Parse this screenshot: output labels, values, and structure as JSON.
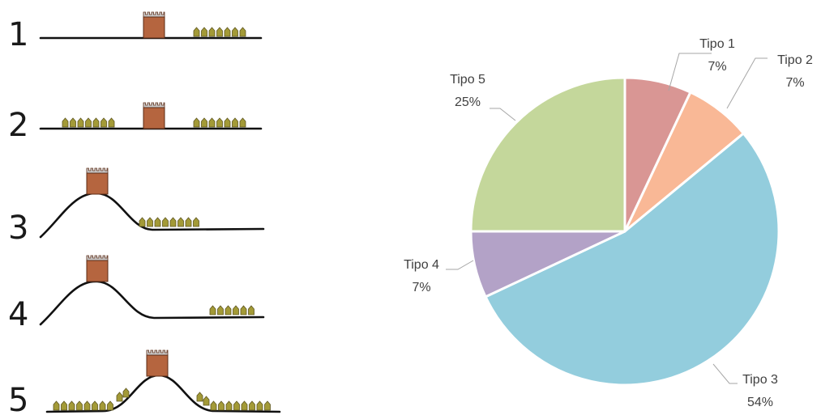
{
  "diagram": {
    "types": [
      {
        "number": "1"
      },
      {
        "number": "2"
      },
      {
        "number": "3"
      },
      {
        "number": "4"
      },
      {
        "number": "5"
      }
    ]
  },
  "chart_data": {
    "type": "pie",
    "title": "",
    "labels": [
      "Tipo 1",
      "Tipo 2",
      "Tipo 3",
      "Tipo 4",
      "Tipo 5"
    ],
    "values": [
      7,
      7,
      54,
      7,
      25
    ],
    "value_labels": [
      "7%",
      "7%",
      "54%",
      "7%",
      "25%"
    ],
    "colors": [
      "#d99694",
      "#f9b896",
      "#93cddd",
      "#b3a2c7",
      "#c4d79b"
    ],
    "legend": "none"
  },
  "colors": {
    "tower": "#b5653f",
    "tower_outline": "#5c2c16",
    "field": "#a39a37",
    "field_outline": "#5e5620"
  }
}
